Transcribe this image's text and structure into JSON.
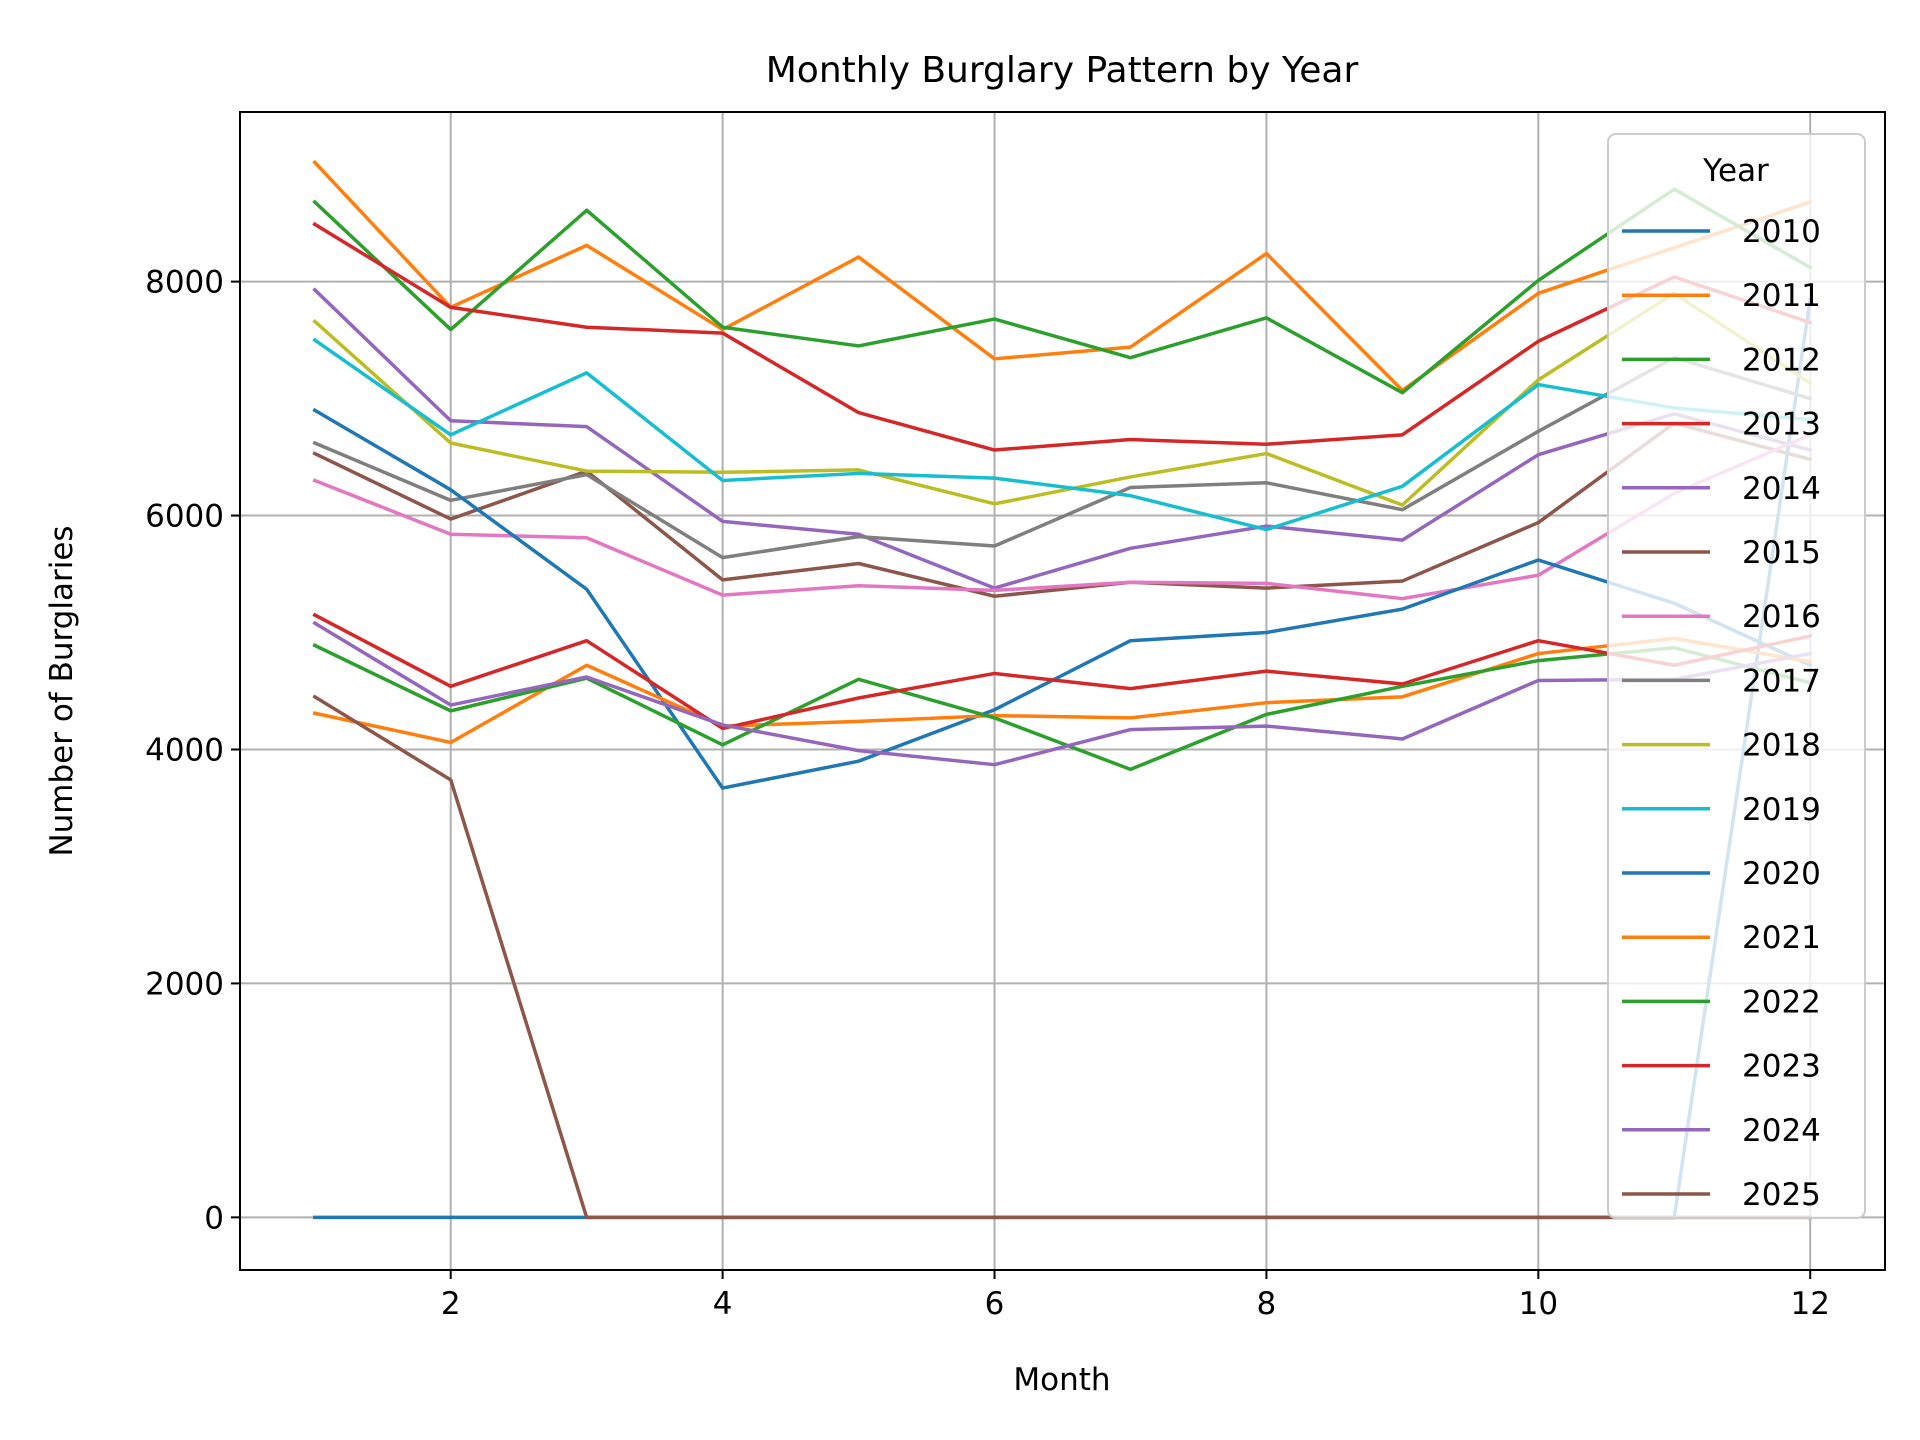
{
  "chart_data": {
    "type": "line",
    "title": "Monthly Burglary Pattern by Year",
    "xlabel": "Month",
    "ylabel": "Number of Burglaries",
    "xlim": [
      0.45,
      12.55
    ],
    "ylim": [
      -450,
      9450
    ],
    "x_ticks": [
      2,
      4,
      6,
      8,
      10,
      12
    ],
    "y_ticks": [
      0,
      2000,
      4000,
      6000,
      8000
    ],
    "grid": true,
    "legend_title": "Year",
    "legend_position": "top-right",
    "x": [
      1,
      2,
      3,
      4,
      5,
      6,
      7,
      8,
      9,
      10,
      11,
      12
    ],
    "series": [
      {
        "name": "2010",
        "color": "#1f77b4",
        "values": [
          0,
          0,
          0,
          0,
          0,
          0,
          0,
          0,
          0,
          0,
          0,
          7850
        ]
      },
      {
        "name": "2011",
        "color": "#ff7f0e",
        "values": [
          9020,
          7780,
          8310,
          7590,
          8210,
          7340,
          7440,
          8240,
          7070,
          7900,
          8290,
          8680
        ]
      },
      {
        "name": "2012",
        "color": "#2ca02c",
        "values": [
          8680,
          7590,
          8610,
          7610,
          7450,
          7680,
          7350,
          7690,
          7050,
          8010,
          8790,
          8120
        ]
      },
      {
        "name": "2013",
        "color": "#d62728",
        "values": [
          8490,
          7780,
          7610,
          7560,
          6880,
          6560,
          6650,
          6610,
          6690,
          7490,
          8040,
          7650
        ]
      },
      {
        "name": "2014",
        "color": "#9467bd",
        "values": [
          7930,
          6810,
          6760,
          5950,
          5840,
          5380,
          5720,
          5910,
          5790,
          6520,
          6870,
          6560
        ]
      },
      {
        "name": "2015",
        "color": "#8c564b",
        "values": [
          6530,
          5970,
          6380,
          5450,
          5590,
          5310,
          5430,
          5380,
          5440,
          5940,
          6790,
          6480
        ]
      },
      {
        "name": "2016",
        "color": "#e377c2",
        "values": [
          6300,
          5840,
          5810,
          5320,
          5400,
          5360,
          5430,
          5420,
          5290,
          5490,
          6190,
          6690
        ]
      },
      {
        "name": "2017",
        "color": "#7f7f7f",
        "values": [
          6620,
          6130,
          6350,
          5640,
          5820,
          5740,
          6240,
          6280,
          6050,
          6720,
          7350,
          7000
        ]
      },
      {
        "name": "2018",
        "color": "#bcbd22",
        "values": [
          7660,
          6620,
          6380,
          6370,
          6390,
          6100,
          6330,
          6530,
          6090,
          7160,
          7900,
          7130
        ]
      },
      {
        "name": "2019",
        "color": "#17becf",
        "values": [
          7500,
          6690,
          7220,
          6300,
          6360,
          6320,
          6170,
          5880,
          6250,
          7120,
          6920,
          6820
        ]
      },
      {
        "name": "2020",
        "color": "#1f77b4",
        "values": [
          6900,
          6220,
          5370,
          3670,
          3900,
          4340,
          4930,
          5000,
          5200,
          5620,
          5250,
          4720
        ]
      },
      {
        "name": "2021",
        "color": "#ff7f0e",
        "values": [
          4310,
          4060,
          4720,
          4200,
          4240,
          4290,
          4270,
          4400,
          4450,
          4820,
          4950,
          4750
        ]
      },
      {
        "name": "2022",
        "color": "#2ca02c",
        "values": [
          4890,
          4330,
          4610,
          4040,
          4600,
          4270,
          3830,
          4300,
          4540,
          4760,
          4870,
          4570
        ]
      },
      {
        "name": "2023",
        "color": "#d62728",
        "values": [
          5150,
          4540,
          4930,
          4180,
          4440,
          4650,
          4520,
          4670,
          4560,
          4930,
          4720,
          4970
        ]
      },
      {
        "name": "2024",
        "color": "#9467bd",
        "values": [
          5080,
          4380,
          4620,
          4210,
          3990,
          3870,
          4170,
          4200,
          4090,
          4590,
          4600,
          4820
        ]
      },
      {
        "name": "2025",
        "color": "#8c564b",
        "values": [
          4450,
          3740,
          0,
          0,
          0,
          0,
          0,
          0,
          0,
          0,
          0,
          0
        ]
      }
    ]
  }
}
